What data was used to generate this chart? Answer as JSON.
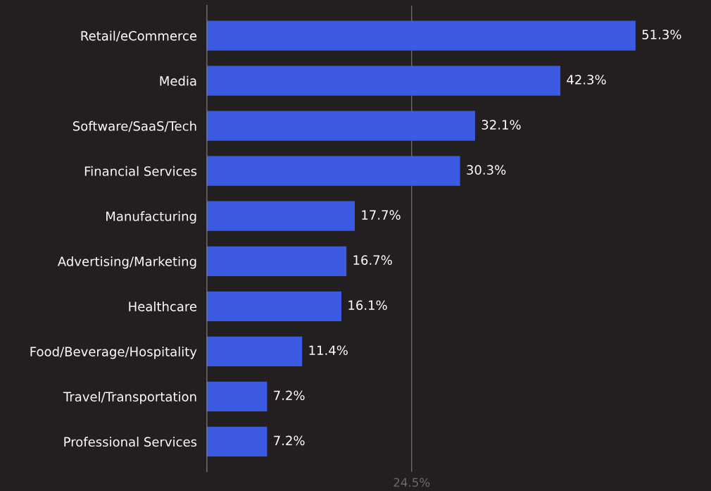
{
  "chart_data": {
    "type": "bar",
    "orientation": "horizontal",
    "categories": [
      "Retail/eCommerce",
      "Media",
      "Software/SaaS/Tech",
      "Financial Services",
      "Manufacturing",
      "Advertising/Marketing",
      "Healthcare",
      "Food/Beverage/Hospitality",
      "Travel/Transportation",
      "Professional Services"
    ],
    "values": [
      51.3,
      42.3,
      32.1,
      30.3,
      17.7,
      16.7,
      16.1,
      11.4,
      7.2,
      7.2
    ],
    "value_labels": [
      "51.3%",
      "42.3%",
      "32.1%",
      "30.3%",
      "17.7%",
      "16.7%",
      "16.1%",
      "11.4%",
      "7.2%",
      "7.2%"
    ],
    "color": "#3d5ae3",
    "tick_labels": "y",
    "grid": false,
    "legend": false,
    "ref_lines": [
      {
        "axis": "x",
        "value": 24.5,
        "label": "24.5%",
        "color": "#6b6b6b"
      }
    ]
  }
}
